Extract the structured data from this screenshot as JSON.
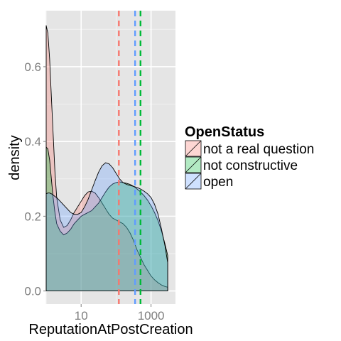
{
  "chart_data": {
    "type": "area",
    "xlabel": "ReputationAtPostCreation",
    "ylabel": "density",
    "x_scale": "log10",
    "xlim": [
      1,
      5000
    ],
    "ylim": [
      -0.035,
      0.75
    ],
    "x_ticks": [
      {
        "value": 10,
        "label": "10"
      },
      {
        "value": 1000,
        "label": "1000"
      }
    ],
    "y_ticks": [
      {
        "value": 0.0,
        "label": "0.0"
      },
      {
        "value": 0.2,
        "label": "0.2"
      },
      {
        "value": 0.4,
        "label": "0.4"
      },
      {
        "value": 0.6,
        "label": "0.6"
      }
    ],
    "grid": true,
    "legend_title": "OpenStatus",
    "legend_position": "right",
    "series": [
      {
        "name": "not a real question",
        "color": "#f8766d",
        "mean_x": 120,
        "points": [
          [
            1,
            0.71
          ],
          [
            1.12,
            0.69
          ],
          [
            1.26,
            0.62
          ],
          [
            1.41,
            0.52
          ],
          [
            1.58,
            0.42
          ],
          [
            1.78,
            0.32
          ],
          [
            2,
            0.25
          ],
          [
            2.51,
            0.19
          ],
          [
            3.16,
            0.17
          ],
          [
            3.98,
            0.175
          ],
          [
            5.01,
            0.19
          ],
          [
            6.31,
            0.21
          ],
          [
            7.94,
            0.225
          ],
          [
            10,
            0.24
          ],
          [
            12.6,
            0.255
          ],
          [
            15.8,
            0.265
          ],
          [
            20,
            0.267
          ],
          [
            25.1,
            0.262
          ],
          [
            31.6,
            0.25
          ],
          [
            39.8,
            0.235
          ],
          [
            50.1,
            0.22
          ],
          [
            63.1,
            0.205
          ],
          [
            79.4,
            0.195
          ],
          [
            100,
            0.19
          ],
          [
            126,
            0.185
          ],
          [
            158,
            0.18
          ],
          [
            200,
            0.17
          ],
          [
            251,
            0.155
          ],
          [
            316,
            0.135
          ],
          [
            398,
            0.11
          ],
          [
            501,
            0.09
          ],
          [
            631,
            0.07
          ],
          [
            794,
            0.055
          ],
          [
            1000,
            0.04
          ],
          [
            1259,
            0.03
          ],
          [
            1585,
            0.022
          ],
          [
            1995,
            0.016
          ],
          [
            2512,
            0.012
          ],
          [
            3000,
            0.01
          ]
        ]
      },
      {
        "name": "not constructive",
        "color": "#00ba38",
        "mean_x": 500,
        "points": [
          [
            1,
            0.385
          ],
          [
            1.12,
            0.38
          ],
          [
            1.26,
            0.35
          ],
          [
            1.41,
            0.3
          ],
          [
            1.58,
            0.25
          ],
          [
            1.78,
            0.21
          ],
          [
            2,
            0.18
          ],
          [
            2.51,
            0.16
          ],
          [
            3.16,
            0.15
          ],
          [
            3.98,
            0.155
          ],
          [
            5.01,
            0.165
          ],
          [
            6.31,
            0.18
          ],
          [
            7.94,
            0.19
          ],
          [
            10,
            0.2
          ],
          [
            12.6,
            0.205
          ],
          [
            15.8,
            0.21
          ],
          [
            20,
            0.215
          ],
          [
            25.1,
            0.225
          ],
          [
            31.6,
            0.235
          ],
          [
            39.8,
            0.25
          ],
          [
            50.1,
            0.265
          ],
          [
            63.1,
            0.278
          ],
          [
            79.4,
            0.286
          ],
          [
            100,
            0.29
          ],
          [
            126,
            0.292
          ],
          [
            158,
            0.29
          ],
          [
            200,
            0.288
          ],
          [
            251,
            0.285
          ],
          [
            316,
            0.28
          ],
          [
            398,
            0.273
          ],
          [
            501,
            0.265
          ],
          [
            631,
            0.255
          ],
          [
            794,
            0.243
          ],
          [
            1000,
            0.228
          ],
          [
            1259,
            0.21
          ],
          [
            1585,
            0.188
          ],
          [
            1995,
            0.16
          ],
          [
            2512,
            0.125
          ],
          [
            3000,
            0.095
          ]
        ]
      },
      {
        "name": "open",
        "color": "#619cff",
        "mean_x": 350,
        "points": [
          [
            1,
            0.26
          ],
          [
            1.12,
            0.262
          ],
          [
            1.26,
            0.262
          ],
          [
            1.41,
            0.26
          ],
          [
            1.58,
            0.257
          ],
          [
            1.78,
            0.253
          ],
          [
            2,
            0.25
          ],
          [
            2.51,
            0.24
          ],
          [
            3.16,
            0.23
          ],
          [
            3.98,
            0.22
          ],
          [
            5.01,
            0.21
          ],
          [
            6.31,
            0.205
          ],
          [
            7.94,
            0.205
          ],
          [
            10,
            0.21
          ],
          [
            12.6,
            0.225
          ],
          [
            15.8,
            0.245
          ],
          [
            20,
            0.27
          ],
          [
            25.1,
            0.295
          ],
          [
            31.6,
            0.318
          ],
          [
            39.8,
            0.335
          ],
          [
            50.1,
            0.343
          ],
          [
            63.1,
            0.34
          ],
          [
            79.4,
            0.33
          ],
          [
            100,
            0.315
          ],
          [
            126,
            0.3
          ],
          [
            158,
            0.29
          ],
          [
            200,
            0.285
          ],
          [
            251,
            0.282
          ],
          [
            316,
            0.28
          ],
          [
            398,
            0.277
          ],
          [
            501,
            0.273
          ],
          [
            631,
            0.267
          ],
          [
            794,
            0.26
          ],
          [
            1000,
            0.25
          ],
          [
            1259,
            0.232
          ],
          [
            1585,
            0.205
          ],
          [
            1995,
            0.165
          ],
          [
            2512,
            0.12
          ],
          [
            3000,
            0.075
          ]
        ]
      }
    ]
  }
}
